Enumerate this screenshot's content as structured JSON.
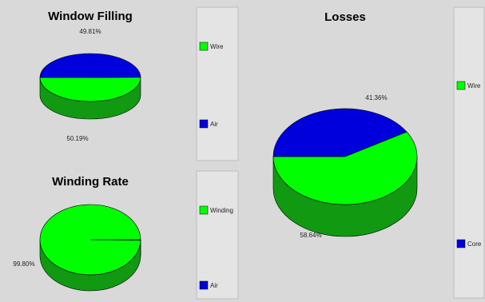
{
  "colors": {
    "background": "#d9d9d9",
    "panel": "#e4e4e4",
    "green_top": "#00ff00",
    "green_side": "#119911",
    "blue_top": "#0000dd",
    "blue_side": "#0000aa",
    "outline": "#000000"
  },
  "chart_data": [
    {
      "type": "pie",
      "title": "Window Filling",
      "slices": [
        {
          "name": "Wire",
          "value": 50.19,
          "label": "50.19%",
          "color": "#00ff00"
        },
        {
          "name": "Air",
          "value": 49.81,
          "label": "49.81%",
          "color": "#0000dd"
        }
      ],
      "legend": [
        "Wire",
        "Air"
      ],
      "style": "3d"
    },
    {
      "type": "pie",
      "title": "Winding Rate",
      "slices": [
        {
          "name": "Winding",
          "value": 99.8,
          "label": "99.80%",
          "color": "#00ff00"
        },
        {
          "name": "Air",
          "value": 0.2,
          "label": "",
          "color": "#0000dd"
        }
      ],
      "legend": [
        "Winding",
        "Air"
      ],
      "style": "3d"
    },
    {
      "type": "pie",
      "title": "Losses",
      "slices": [
        {
          "name": "Wire",
          "value": 58.64,
          "label": "58.64%",
          "color": "#00ff00"
        },
        {
          "name": "Core",
          "value": 41.36,
          "label": "41.36%",
          "color": "#0000dd"
        }
      ],
      "legend": [
        "Wire",
        "Core"
      ],
      "style": "3d"
    }
  ]
}
